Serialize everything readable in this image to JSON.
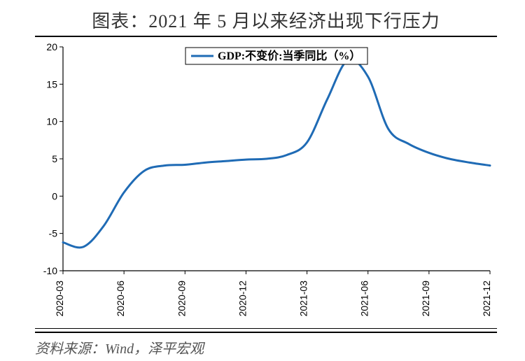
{
  "title": "图表：2021 年 5 月以来经济出现下行压力",
  "source": "资料来源：Wind，泽平宏观",
  "chart": {
    "type": "line",
    "legend_label": "GDP:不变价:当季同比（%）",
    "line_color": "#1f6bb5",
    "line_width": 3,
    "axis_color": "#000000",
    "background_color": "#ffffff",
    "ylim": [
      -10,
      20
    ],
    "ytick_step": 5,
    "yticks": [
      -10,
      -5,
      0,
      5,
      10,
      15,
      20
    ],
    "x_labels": [
      "2020-03",
      "2020-06",
      "2020-09",
      "2020-12",
      "2021-03",
      "2021-06",
      "2021-09",
      "2021-12"
    ],
    "x_positions_idx": [
      0,
      3,
      6,
      9,
      12,
      15,
      18,
      21
    ],
    "n_points": 22,
    "values": [
      -6.2,
      -6.8,
      -4.0,
      0.5,
      3.4,
      4.1,
      4.2,
      4.5,
      4.7,
      4.9,
      5.0,
      5.5,
      7.2,
      13.0,
      18.2,
      16.0,
      9.0,
      7.0,
      5.8,
      5.0,
      4.5,
      4.1
    ],
    "tick_fontsize": 14,
    "legend_fontsize": 16
  }
}
